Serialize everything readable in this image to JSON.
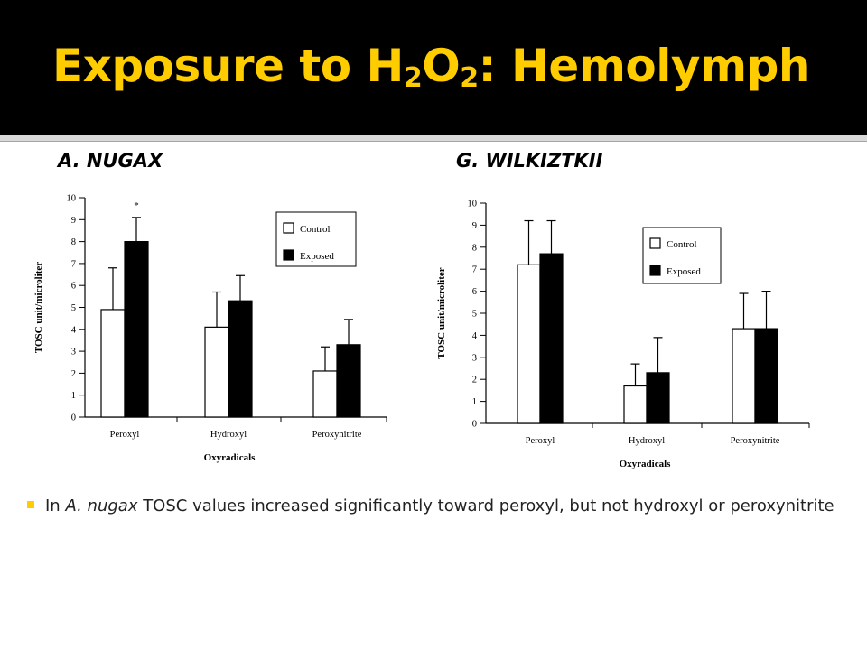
{
  "slide": {
    "title_main": "Exposure to H",
    "title_sub1": "2",
    "title_mid": "O",
    "title_sub2": "2",
    "title_end": ": Hemolymph",
    "species_a": "A. NUGAX",
    "species_b": "G. WILKIZTKII",
    "bullet": {
      "prefix": "In ",
      "species": "A. nugax",
      "text": " TOSC values increased significantly  toward peroxyl, but not hydroxyl or peroxynitrite"
    }
  },
  "colors": {
    "title": "#ffcc00",
    "title_band": "#000000",
    "bullet": "#ffcc00",
    "control_fill": "#ffffff",
    "exposed_fill": "#000000"
  },
  "chart_data": [
    {
      "type": "bar",
      "title": "",
      "xlabel": "Oxyradicals",
      "ylabel": "TOSC unit/microliter",
      "categories": [
        "Peroxyl",
        "Hydroxyl",
        "Peroxynitrite"
      ],
      "ylim": [
        0,
        10
      ],
      "yticks": [
        0,
        1,
        2,
        3,
        4,
        5,
        6,
        7,
        8,
        9,
        10
      ],
      "legend_position": "top-right",
      "series": [
        {
          "name": "Control",
          "values": [
            4.9,
            4.1,
            2.1
          ],
          "errors": [
            1.9,
            1.6,
            1.1
          ]
        },
        {
          "name": "Exposed",
          "values": [
            8.0,
            5.3,
            3.3
          ],
          "errors": [
            1.1,
            1.15,
            1.15
          ]
        }
      ],
      "annotations": [
        {
          "category": "Peroxyl",
          "series": "Exposed",
          "text": "*"
        }
      ]
    },
    {
      "type": "bar",
      "title": "",
      "xlabel": "Oxyradicals",
      "ylabel": "TOSC unit/microliter",
      "categories": [
        "Peroxyl",
        "Hydroxyl",
        "Peroxynitrite"
      ],
      "ylim": [
        0,
        10
      ],
      "yticks": [
        0,
        1,
        2,
        3,
        4,
        5,
        6,
        7,
        8,
        9,
        10
      ],
      "legend_position": "top-right",
      "series": [
        {
          "name": "Control",
          "values": [
            7.2,
            1.7,
            4.3
          ],
          "errors": [
            2.0,
            1.0,
            1.6
          ]
        },
        {
          "name": "Exposed",
          "values": [
            7.7,
            2.3,
            4.3
          ],
          "errors": [
            1.5,
            1.6,
            1.7
          ]
        }
      ],
      "annotations": []
    }
  ]
}
